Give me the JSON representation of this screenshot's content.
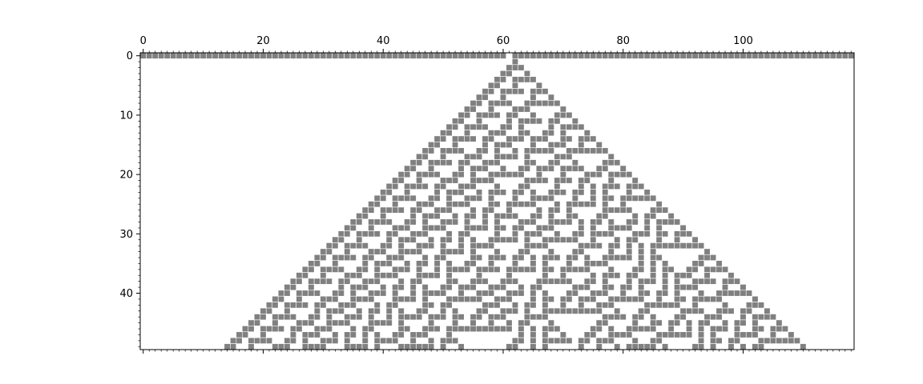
{
  "chart_data": {
    "type": "heatmap",
    "title": "",
    "xlabel": "",
    "ylabel": "",
    "rows": 50,
    "cols": 119,
    "xlim": [
      -0.5,
      118.5
    ],
    "ylim": [
      49.5,
      -0.5
    ],
    "x_axis_position": "top",
    "x_ticks": [
      0,
      20,
      40,
      60,
      80,
      100
    ],
    "x_tick_labels": [
      "0",
      "20",
      "40",
      "60",
      "80",
      "100"
    ],
    "y_ticks": [
      0,
      10,
      20,
      30,
      40
    ],
    "y_tick_labels": [
      "0",
      "10",
      "20",
      "30",
      "40"
    ],
    "grid": false,
    "legend": "none",
    "colors": {
      "on": "#808080",
      "off": "#ffffff",
      "cell_border": "#ffffff"
    },
    "description_of_values": "binary grid of elementary cellular automaton states; row 0 is the initial condition and each later row is one generation",
    "rule": 30,
    "boundary": "periodic",
    "initial_row": "11111111111111111111111111111111111111111111111111111111111110111111111111111111111111111111111111111111111111111111111111"
  }
}
